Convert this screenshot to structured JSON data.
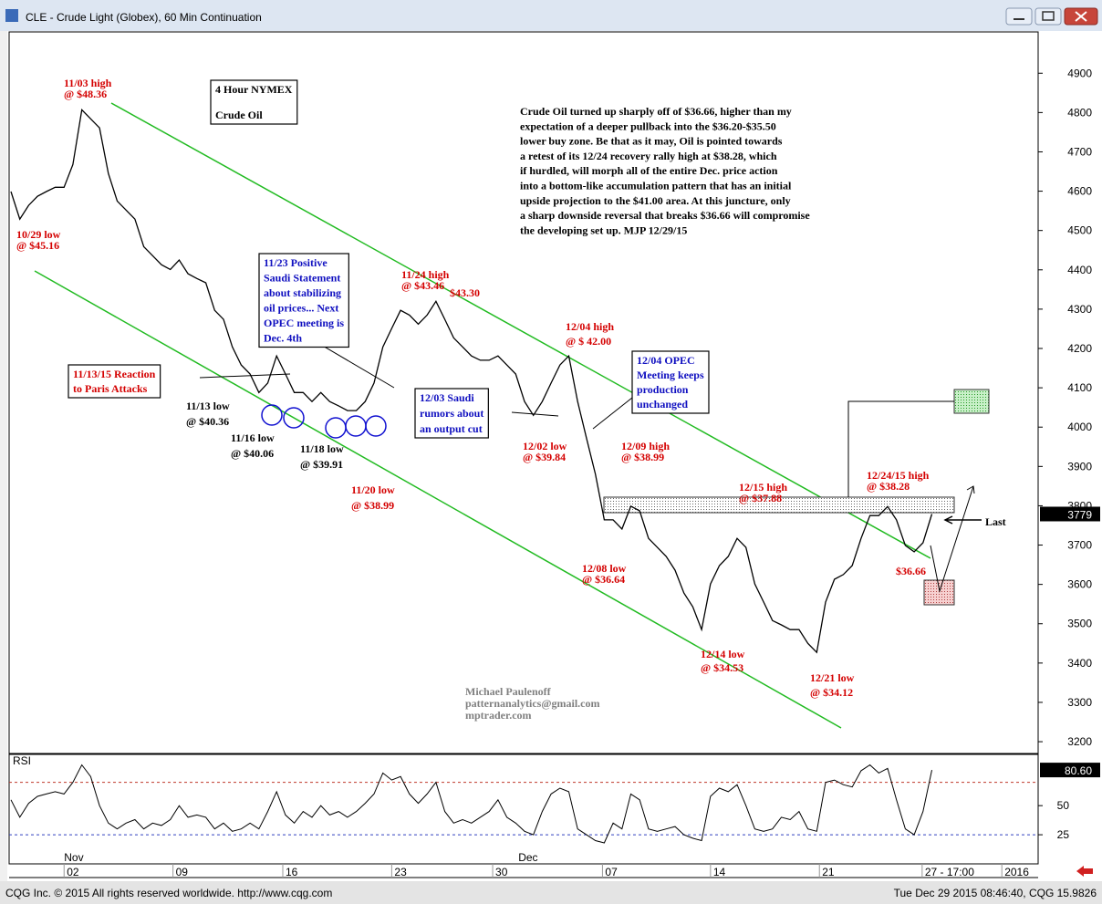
{
  "window": {
    "title": "CLE - Crude Light (Globex), 60 Min Continuation"
  },
  "footer": {
    "left": "CQG Inc. © 2015 All rights reserved worldwide. http://www.cqg.com",
    "right": "Tue Dec 29 2015 08:46:40, CQG 15.9826"
  },
  "chart_data": {
    "type": "line",
    "series": [
      {
        "color": "#000000",
        "values": [
          4599,
          4529,
          4564,
          4587,
          4599,
          4610,
          4610,
          4668,
          4807,
          4784,
          4761,
          4645,
          4575,
          4552,
          4529,
          4459,
          4436,
          4413,
          4401,
          4425,
          4390,
          4378,
          4367,
          4297,
          4274,
          4204,
          4158,
          4135,
          4088,
          4112,
          4181,
          4135,
          4088,
          4088,
          4065,
          4088,
          4065,
          4054,
          4042,
          4042,
          4065,
          4112,
          4204,
          4251,
          4297,
          4285,
          4262,
          4285,
          4320,
          4274,
          4227,
          4204,
          4181,
          4170,
          4170,
          4181,
          4158,
          4135,
          4065,
          4030,
          4065,
          4112,
          4158,
          4181,
          4065,
          3972,
          3880,
          3764,
          3764,
          3741,
          3799,
          3787,
          3717,
          3694,
          3671,
          3636,
          3578,
          3543,
          3485,
          3601,
          3648,
          3671,
          3717,
          3694,
          3601,
          3555,
          3508,
          3497,
          3485,
          3485,
          3450,
          3427,
          3555,
          3613,
          3625,
          3648,
          3717,
          3775,
          3775,
          3798,
          3764,
          3699,
          3683,
          3706,
          3779
        ]
      }
    ],
    "xlim": [
      0,
      116
    ],
    "xticks": [
      {
        "value": 6,
        "label": "02"
      },
      {
        "value": 18.3,
        "label": "09"
      },
      {
        "value": 30.7,
        "label": "16"
      },
      {
        "value": 43,
        "label": "23"
      },
      {
        "value": 54.4,
        "label": "30"
      },
      {
        "value": 66.8,
        "label": "07"
      },
      {
        "value": 79,
        "label": "14"
      },
      {
        "value": 91.3,
        "label": "21"
      },
      {
        "value": 102.9,
        "label": "27 - 17:00"
      },
      {
        "value": 111.9,
        "label": "2016"
      }
    ],
    "month_ticks": [
      {
        "value": 6,
        "label": "Nov"
      },
      {
        "value": 57.3,
        "label": "Dec"
      }
    ],
    "ylim": [
      3170,
      5005
    ],
    "yticks": [
      3200,
      3300,
      3400,
      3500,
      3600,
      3700,
      3800,
      3900,
      4000,
      4100,
      4200,
      4300,
      4400,
      4500,
      4600,
      4700,
      4800,
      4900
    ],
    "rsi": {
      "type": "line",
      "label": "RSI",
      "color": "#000000",
      "level_color": "#c0392b",
      "levels": [
        70,
        25
      ],
      "ylim": [
        0,
        94
      ],
      "yticks": [
        25,
        50
      ],
      "last_value_label": "80.60",
      "values": [
        55,
        40,
        52,
        58,
        60,
        62,
        60,
        70,
        85,
        75,
        50,
        35,
        30,
        35,
        38,
        30,
        35,
        33,
        38,
        50,
        40,
        42,
        40,
        30,
        35,
        28,
        30,
        35,
        30,
        45,
        62,
        42,
        35,
        45,
        40,
        50,
        42,
        45,
        40,
        45,
        52,
        60,
        78,
        72,
        75,
        60,
        52,
        60,
        70,
        45,
        35,
        38,
        35,
        40,
        45,
        55,
        40,
        35,
        28,
        25,
        45,
        60,
        65,
        62,
        30,
        25,
        20,
        18,
        35,
        30,
        60,
        55,
        30,
        28,
        30,
        32,
        25,
        22,
        20,
        58,
        65,
        62,
        68,
        50,
        30,
        28,
        30,
        40,
        38,
        45,
        30,
        28,
        70,
        72,
        68,
        66,
        80,
        85,
        78,
        82,
        55,
        30,
        25,
        45,
        80.6
      ]
    },
    "annotations": [
      {
        "lines": [
          "4 Hour NYMEX",
          "Crude Oil"
        ],
        "color": "#000000",
        "box": true
      },
      {
        "lines": [
          "Crude Oil turned up sharply off of $36.66, higher than my",
          "expectation of a deeper pullback into the $36.20-$35.50",
          "lower buy zone. Be that as it may, Oil is pointed towards",
          "a retest of its 12/24 recovery rally high at $38.28, which",
          "if hurdled, will morph all of the entire Dec. price action",
          "into a bottom-like accumulation pattern that has an initial",
          "upside projection to the $41.00 area. At this juncture, only",
          "a sharp downside reversal that breaks $36.66 will compromise",
          "the developing set up.  MJP 12/29/15"
        ],
        "color": "#000000"
      },
      {
        "lines": [
          "11/03 high",
          "@ $48.36"
        ],
        "color": "#d40000"
      },
      {
        "lines": [
          "10/29 low",
          "@ $45.16"
        ],
        "color": "#d40000"
      },
      {
        "lines": [
          "11/23 Positive",
          "Saudi Statement",
          "about stabilizing",
          "oil prices... Next",
          "OPEC meeting is",
          "Dec. 4th"
        ],
        "color": "#1010c0",
        "box": true
      },
      {
        "lines": [
          "11/24 high",
          "@ $43.46"
        ],
        "color": "#d40000"
      },
      {
        "lines": [
          "$43.30"
        ],
        "color": "#d40000"
      },
      {
        "lines": [
          "12/04 high",
          "@ $ 42.00"
        ],
        "color": "#d40000"
      },
      {
        "lines": [
          "12/04 OPEC",
          "Meeting keeps",
          "production",
          "unchanged"
        ],
        "color": "#1010c0",
        "box": true
      },
      {
        "lines": [
          "11/13/15 Reaction",
          "to Paris Attacks"
        ],
        "color": "#d40000",
        "box": true
      },
      {
        "lines": [
          "12/03 Saudi",
          "rumors about",
          "an output cut"
        ],
        "color": "#1010c0",
        "box": true
      },
      {
        "lines": [
          "11/13 low",
          "@ $40.36"
        ],
        "color": "#000000"
      },
      {
        "lines": [
          "11/16 low",
          "@ $40.06"
        ],
        "color": "#000000"
      },
      {
        "lines": [
          "11/18 low",
          "@ $39.91"
        ],
        "color": "#000000"
      },
      {
        "lines": [
          "11/20 low",
          "@ $38.99"
        ],
        "color": "#d40000"
      },
      {
        "lines": [
          "12/02 low",
          "@ $39.84"
        ],
        "color": "#d40000"
      },
      {
        "lines": [
          "12/09 high",
          "@ $38.99"
        ],
        "color": "#d40000"
      },
      {
        "lines": [
          "12/15 high",
          "@ $37.88"
        ],
        "color": "#d40000"
      },
      {
        "lines": [
          "12/24/15 high",
          "@ $38.28"
        ],
        "color": "#d40000"
      },
      {
        "lines": [
          "$36.66"
        ],
        "color": "#d40000"
      },
      {
        "lines": [
          "12/08 low",
          "@ $36.64"
        ],
        "color": "#d40000"
      },
      {
        "lines": [
          "12/14 low",
          "@ $34.53"
        ],
        "color": "#d40000"
      },
      {
        "lines": [
          "12/21 low",
          "@ $34.12"
        ],
        "color": "#d40000"
      },
      {
        "lines": [
          "Michael Paulenoff",
          "patternanalytics@gmail.com",
          "mptrader.com"
        ],
        "color": "#808080"
      },
      {
        "lines": [
          "Last"
        ],
        "color": "#000000"
      }
    ]
  }
}
